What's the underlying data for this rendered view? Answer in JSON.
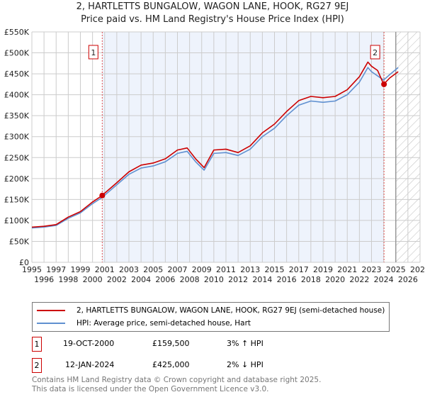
{
  "title": "2, HARTLETTS BUNGALOW, WAGON LANE, HOOK, RG27 9EJ",
  "subtitle": "Price paid vs. HM Land Registry's House Price Index (HPI)",
  "colors": {
    "property": "#cc0000",
    "hpi": "#6090d0",
    "shade": "#eef3fc"
  },
  "chart_data": {
    "type": "line",
    "title": "2, HARTLETTS BUNGALOW, WAGON LANE, HOOK, RG27 9EJ",
    "xlim": [
      1995,
      2027
    ],
    "ylim": [
      0,
      550000
    ],
    "x_ticks": [
      "1995",
      "1996",
      "1997",
      "1998",
      "1999",
      "2000",
      "2001",
      "2002",
      "2003",
      "2004",
      "2005",
      "2006",
      "2007",
      "2008",
      "2009",
      "2010",
      "2011",
      "2012",
      "2013",
      "2014",
      "2015",
      "2016",
      "2017",
      "2018",
      "2019",
      "2020",
      "2021",
      "2022",
      "2023",
      "2024",
      "2025",
      "2026",
      "2027"
    ],
    "y_ticks": [
      {
        "v": 0,
        "label": "£0"
      },
      {
        "v": 50000,
        "label": "£50K"
      },
      {
        "v": 100000,
        "label": "£100K"
      },
      {
        "v": 150000,
        "label": "£150K"
      },
      {
        "v": 200000,
        "label": "£200K"
      },
      {
        "v": 250000,
        "label": "£250K"
      },
      {
        "v": 300000,
        "label": "£300K"
      },
      {
        "v": 350000,
        "label": "£350K"
      },
      {
        "v": 400000,
        "label": "£400K"
      },
      {
        "v": 450000,
        "label": "£450K"
      },
      {
        "v": 500000,
        "label": "£500K"
      },
      {
        "v": 550000,
        "label": "£550K"
      }
    ],
    "x": [
      1995,
      1996,
      1997,
      1998,
      1999,
      2000,
      2000.8,
      2001,
      2002,
      2003,
      2004,
      2005,
      2006,
      2007,
      2007.8,
      2008.5,
      2009.2,
      2010,
      2011,
      2012,
      2013,
      2014,
      2015,
      2016,
      2017,
      2018,
      2019,
      2020,
      2021,
      2022,
      2022.7,
      2023,
      2023.5,
      2024,
      2024.5,
      2025.2
    ],
    "series": [
      {
        "name": "2, HARTLETTS BUNGALOW, WAGON LANE, HOOK, RG27 9EJ (semi-detached house)",
        "values": [
          84000,
          86000,
          90000,
          108000,
          121000,
          144000,
          159500,
          165000,
          190000,
          216000,
          232000,
          237000,
          247000,
          268000,
          273000,
          247000,
          226000,
          268000,
          270000,
          262000,
          278000,
          309000,
          330000,
          360000,
          386000,
          396000,
          393000,
          396000,
          412000,
          443000,
          478000,
          468000,
          458000,
          425000,
          440000,
          455000
        ]
      },
      {
        "name": "HPI: Average price, semi-detached house, Hart",
        "values": [
          82000,
          84000,
          88000,
          105000,
          118000,
          140000,
          155000,
          160000,
          185000,
          210000,
          225000,
          230000,
          240000,
          260000,
          265000,
          240000,
          220000,
          260000,
          262000,
          255000,
          270000,
          300000,
          320000,
          350000,
          375000,
          385000,
          382000,
          385000,
          400000,
          430000,
          465000,
          455000,
          445000,
          435000,
          448000,
          465000
        ]
      }
    ],
    "sales": [
      {
        "label": "1",
        "x": 2000.8,
        "value": 159500
      },
      {
        "label": "2",
        "x": 2024.03,
        "value": 425000
      }
    ],
    "forecast_start": 2025.0
  },
  "legend": {
    "property": "2, HARTLETTS BUNGALOW, WAGON LANE, HOOK, RG27 9EJ (semi-detached house)",
    "hpi": "HPI: Average price, semi-detached house, Hart"
  },
  "transactions": [
    {
      "num": "1",
      "date": "19-OCT-2000",
      "price": "£159,500",
      "hpi": "3% ↑ HPI"
    },
    {
      "num": "2",
      "date": "12-JAN-2024",
      "price": "£425,000",
      "hpi": "2% ↓ HPI"
    }
  ],
  "footer": [
    "Contains HM Land Registry data © Crown copyright and database right 2025.",
    "This data is licensed under the Open Government Licence v3.0."
  ]
}
